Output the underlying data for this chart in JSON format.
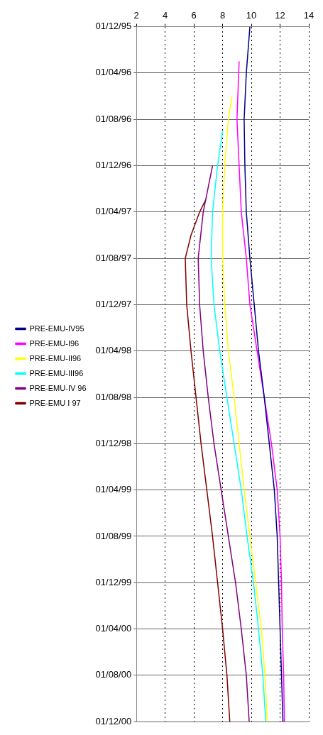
{
  "chart_data": {
    "type": "line",
    "orientation": "horizontal",
    "categories": [
      "01/12/95",
      null,
      null,
      null,
      "01/04/96",
      null,
      null,
      null,
      "01/08/96",
      null,
      null,
      null,
      "01/12/96",
      null,
      null,
      null,
      "01/04/97",
      null,
      null,
      null,
      "01/08/97",
      null,
      null,
      null,
      "01/12/97",
      null,
      null,
      null,
      "01/04/98",
      null,
      null,
      null,
      "01/08/98",
      null,
      null,
      null,
      "01/12/98",
      null,
      null,
      null,
      "01/04/99",
      null,
      null,
      null,
      "01/08/99",
      null,
      null,
      null,
      "01/12/99",
      null,
      null,
      null,
      "01/04/00",
      null,
      null,
      null,
      "01/08/00",
      null,
      null,
      null,
      "01/12/00"
    ],
    "series": [
      {
        "name": "PRE-EMU-IV95",
        "color": "#000080",
        "values": [
          9.9,
          null,
          null,
          null,
          9.65,
          null,
          null,
          null,
          9.5,
          null,
          null,
          null,
          9.55,
          null,
          null,
          null,
          9.65,
          null,
          null,
          null,
          9.9,
          null,
          null,
          null,
          10.2,
          null,
          null,
          null,
          10.5,
          null,
          null,
          null,
          10.9,
          null,
          null,
          null,
          11.25,
          null,
          null,
          null,
          11.6,
          null,
          null,
          null,
          11.8,
          null,
          null,
          null,
          11.9,
          null,
          null,
          null,
          12.0,
          null,
          null,
          null,
          12.1,
          null,
          null,
          null,
          12.2
        ]
      },
      {
        "name": "PRE-EMU-I96",
        "color": "#ff00ff",
        "values": [
          null,
          null,
          null,
          9.15,
          null,
          null,
          null,
          null,
          9.0,
          null,
          null,
          null,
          9.15,
          null,
          null,
          null,
          9.3,
          null,
          null,
          null,
          9.65,
          null,
          null,
          null,
          9.9,
          null,
          null,
          null,
          10.4,
          null,
          null,
          null,
          10.9,
          null,
          null,
          null,
          11.4,
          null,
          null,
          null,
          11.8,
          null,
          null,
          null,
          12.0,
          null,
          null,
          null,
          12.1,
          null,
          null,
          null,
          12.15,
          null,
          null,
          null,
          12.25,
          null,
          null,
          null,
          12.3
        ]
      },
      {
        "name": "PRE-EMU-II96",
        "color": "#ffff00",
        "values": [
          null,
          null,
          null,
          null,
          null,
          null,
          8.65,
          null,
          8.4,
          null,
          null,
          null,
          8.15,
          null,
          null,
          null,
          8.0,
          null,
          null,
          null,
          8.0,
          null,
          null,
          null,
          8.15,
          null,
          null,
          null,
          8.4,
          null,
          null,
          null,
          8.8,
          null,
          null,
          null,
          9.15,
          null,
          null,
          null,
          9.5,
          null,
          null,
          null,
          9.9,
          null,
          null,
          null,
          10.3,
          null,
          null,
          null,
          10.7,
          null,
          null,
          null,
          10.95,
          null,
          null,
          null,
          11.1
        ]
      },
      {
        "name": "PRE-EMU-III96",
        "color": "#00ffff",
        "values": [
          null,
          null,
          null,
          null,
          null,
          null,
          null,
          null,
          null,
          8.0,
          null,
          null,
          7.65,
          null,
          null,
          null,
          7.3,
          null,
          null,
          null,
          7.2,
          null,
          null,
          null,
          7.4,
          null,
          null,
          null,
          7.8,
          null,
          null,
          null,
          8.3,
          null,
          null,
          null,
          8.8,
          null,
          null,
          null,
          9.3,
          null,
          null,
          null,
          9.7,
          null,
          null,
          null,
          10.15,
          null,
          null,
          null,
          10.5,
          null,
          null,
          null,
          10.8,
          null,
          null,
          null,
          11.0
        ]
      },
      {
        "name": "PRE-EMU-IV 96",
        "color": "#800080",
        "values": [
          null,
          null,
          null,
          null,
          null,
          null,
          null,
          null,
          null,
          null,
          null,
          null,
          7.3,
          null,
          null,
          null,
          6.65,
          null,
          null,
          null,
          6.3,
          null,
          null,
          null,
          6.4,
          null,
          null,
          null,
          6.65,
          null,
          null,
          null,
          7.0,
          null,
          null,
          null,
          7.4,
          null,
          null,
          null,
          7.9,
          null,
          null,
          null,
          8.4,
          null,
          null,
          null,
          8.9,
          null,
          null,
          null,
          9.3,
          null,
          null,
          null,
          9.65,
          null,
          null,
          null,
          9.85
        ]
      },
      {
        "name": "PRE-EMU I 97",
        "color": "#800000",
        "values": [
          null,
          null,
          null,
          null,
          null,
          null,
          null,
          null,
          null,
          null,
          null,
          null,
          null,
          null,
          null,
          6.8,
          6.4,
          null,
          5.8,
          null,
          5.4,
          null,
          null,
          null,
          5.5,
          null,
          null,
          null,
          5.8,
          null,
          null,
          null,
          6.15,
          null,
          null,
          null,
          6.5,
          null,
          null,
          null,
          6.9,
          null,
          null,
          null,
          7.3,
          null,
          null,
          null,
          7.65,
          null,
          null,
          null,
          8.0,
          null,
          null,
          null,
          8.3,
          null,
          null,
          null,
          8.5
        ]
      }
    ],
    "xlim": [
      2,
      14
    ],
    "xticks": [
      2,
      4,
      6,
      8,
      10,
      12,
      14
    ],
    "grid": true,
    "legend": "left",
    "marker": "none",
    "line_style": "solid"
  }
}
